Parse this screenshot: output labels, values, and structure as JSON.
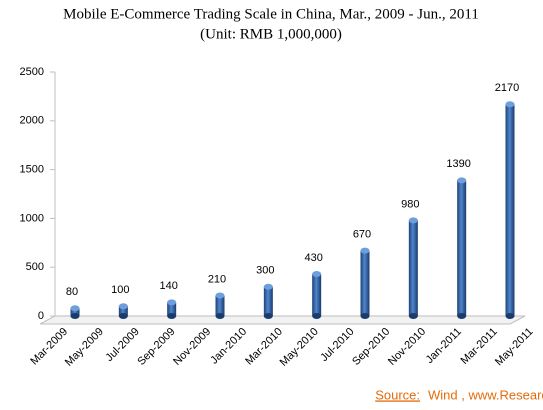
{
  "chart_data": {
    "type": "bar",
    "title": "Mobile E-Commerce Trading Scale in China, Mar., 2009 - Jun., 2011",
    "subtitle": "(Unit: RMB 1,000,000)",
    "xticks": [
      "Mar-2009",
      "May-2009",
      "Jul-2009",
      "Sep-2009",
      "Nov-2009",
      "Jan-2010",
      "Mar-2010",
      "May-2010",
      "Jul-2010",
      "Sep-2010",
      "Nov-2010",
      "Jan-2011",
      "Mar-2011",
      "May-2011"
    ],
    "values": [
      80,
      100,
      140,
      210,
      300,
      430,
      670,
      980,
      1390,
      2170
    ],
    "color": "#2e5f9e",
    "ylim": [
      0,
      2500
    ],
    "yticks": [
      0,
      500,
      1000,
      1500,
      2000,
      2500
    ],
    "grid": false,
    "source_label": "Source:",
    "source_text": "Wind , www.ResearchInChina.com"
  }
}
